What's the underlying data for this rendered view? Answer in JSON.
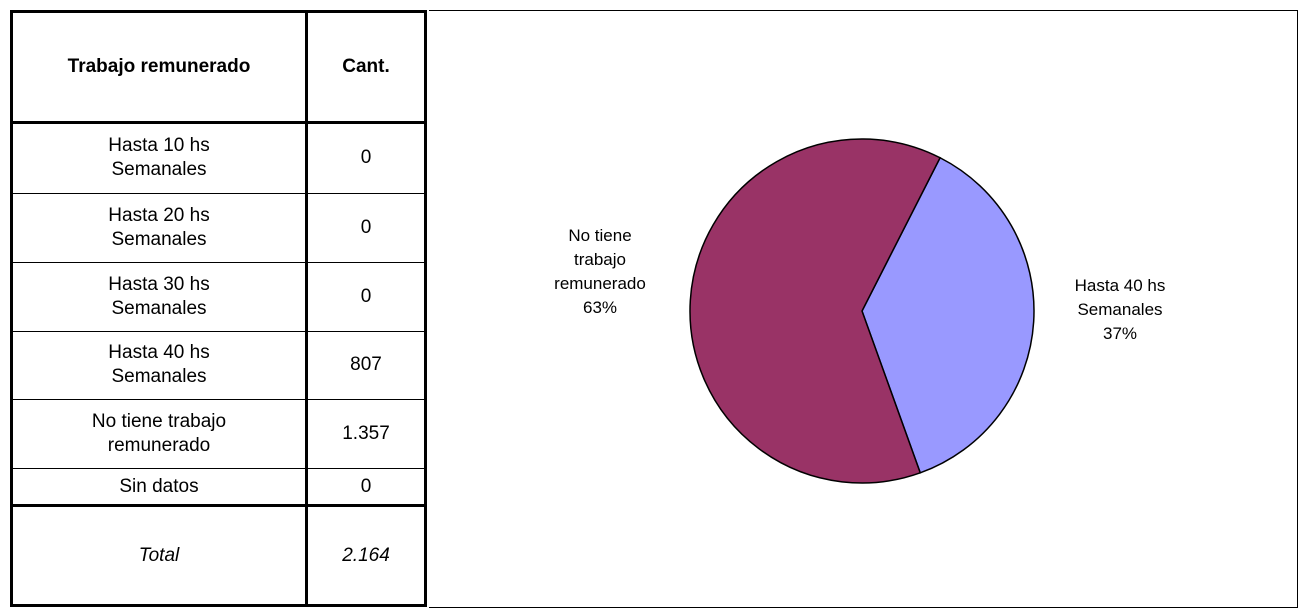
{
  "table": {
    "header": [
      "Trabajo remunerado",
      "Cant."
    ],
    "rows": [
      [
        "Hasta 10 hs Semanales",
        "0"
      ],
      [
        "Hasta 20 hs Semanales",
        "0"
      ],
      [
        "Hasta 30 hs Semanales",
        "0"
      ],
      [
        "Hasta 40 hs Semanales",
        "807"
      ],
      [
        "No tiene trabajo remunerado",
        "1.357"
      ],
      [
        "Sin datos",
        "0"
      ]
    ],
    "total": [
      "Total",
      "2.164"
    ]
  },
  "chart_data": {
    "type": "pie",
    "categories": [
      "Hasta 40 hs Semanales",
      "No tiene trabajo remunerado"
    ],
    "values": [
      37,
      63
    ],
    "value_labels": [
      "37%",
      "63%"
    ],
    "colors": [
      "#9999ff",
      "#993366"
    ]
  }
}
